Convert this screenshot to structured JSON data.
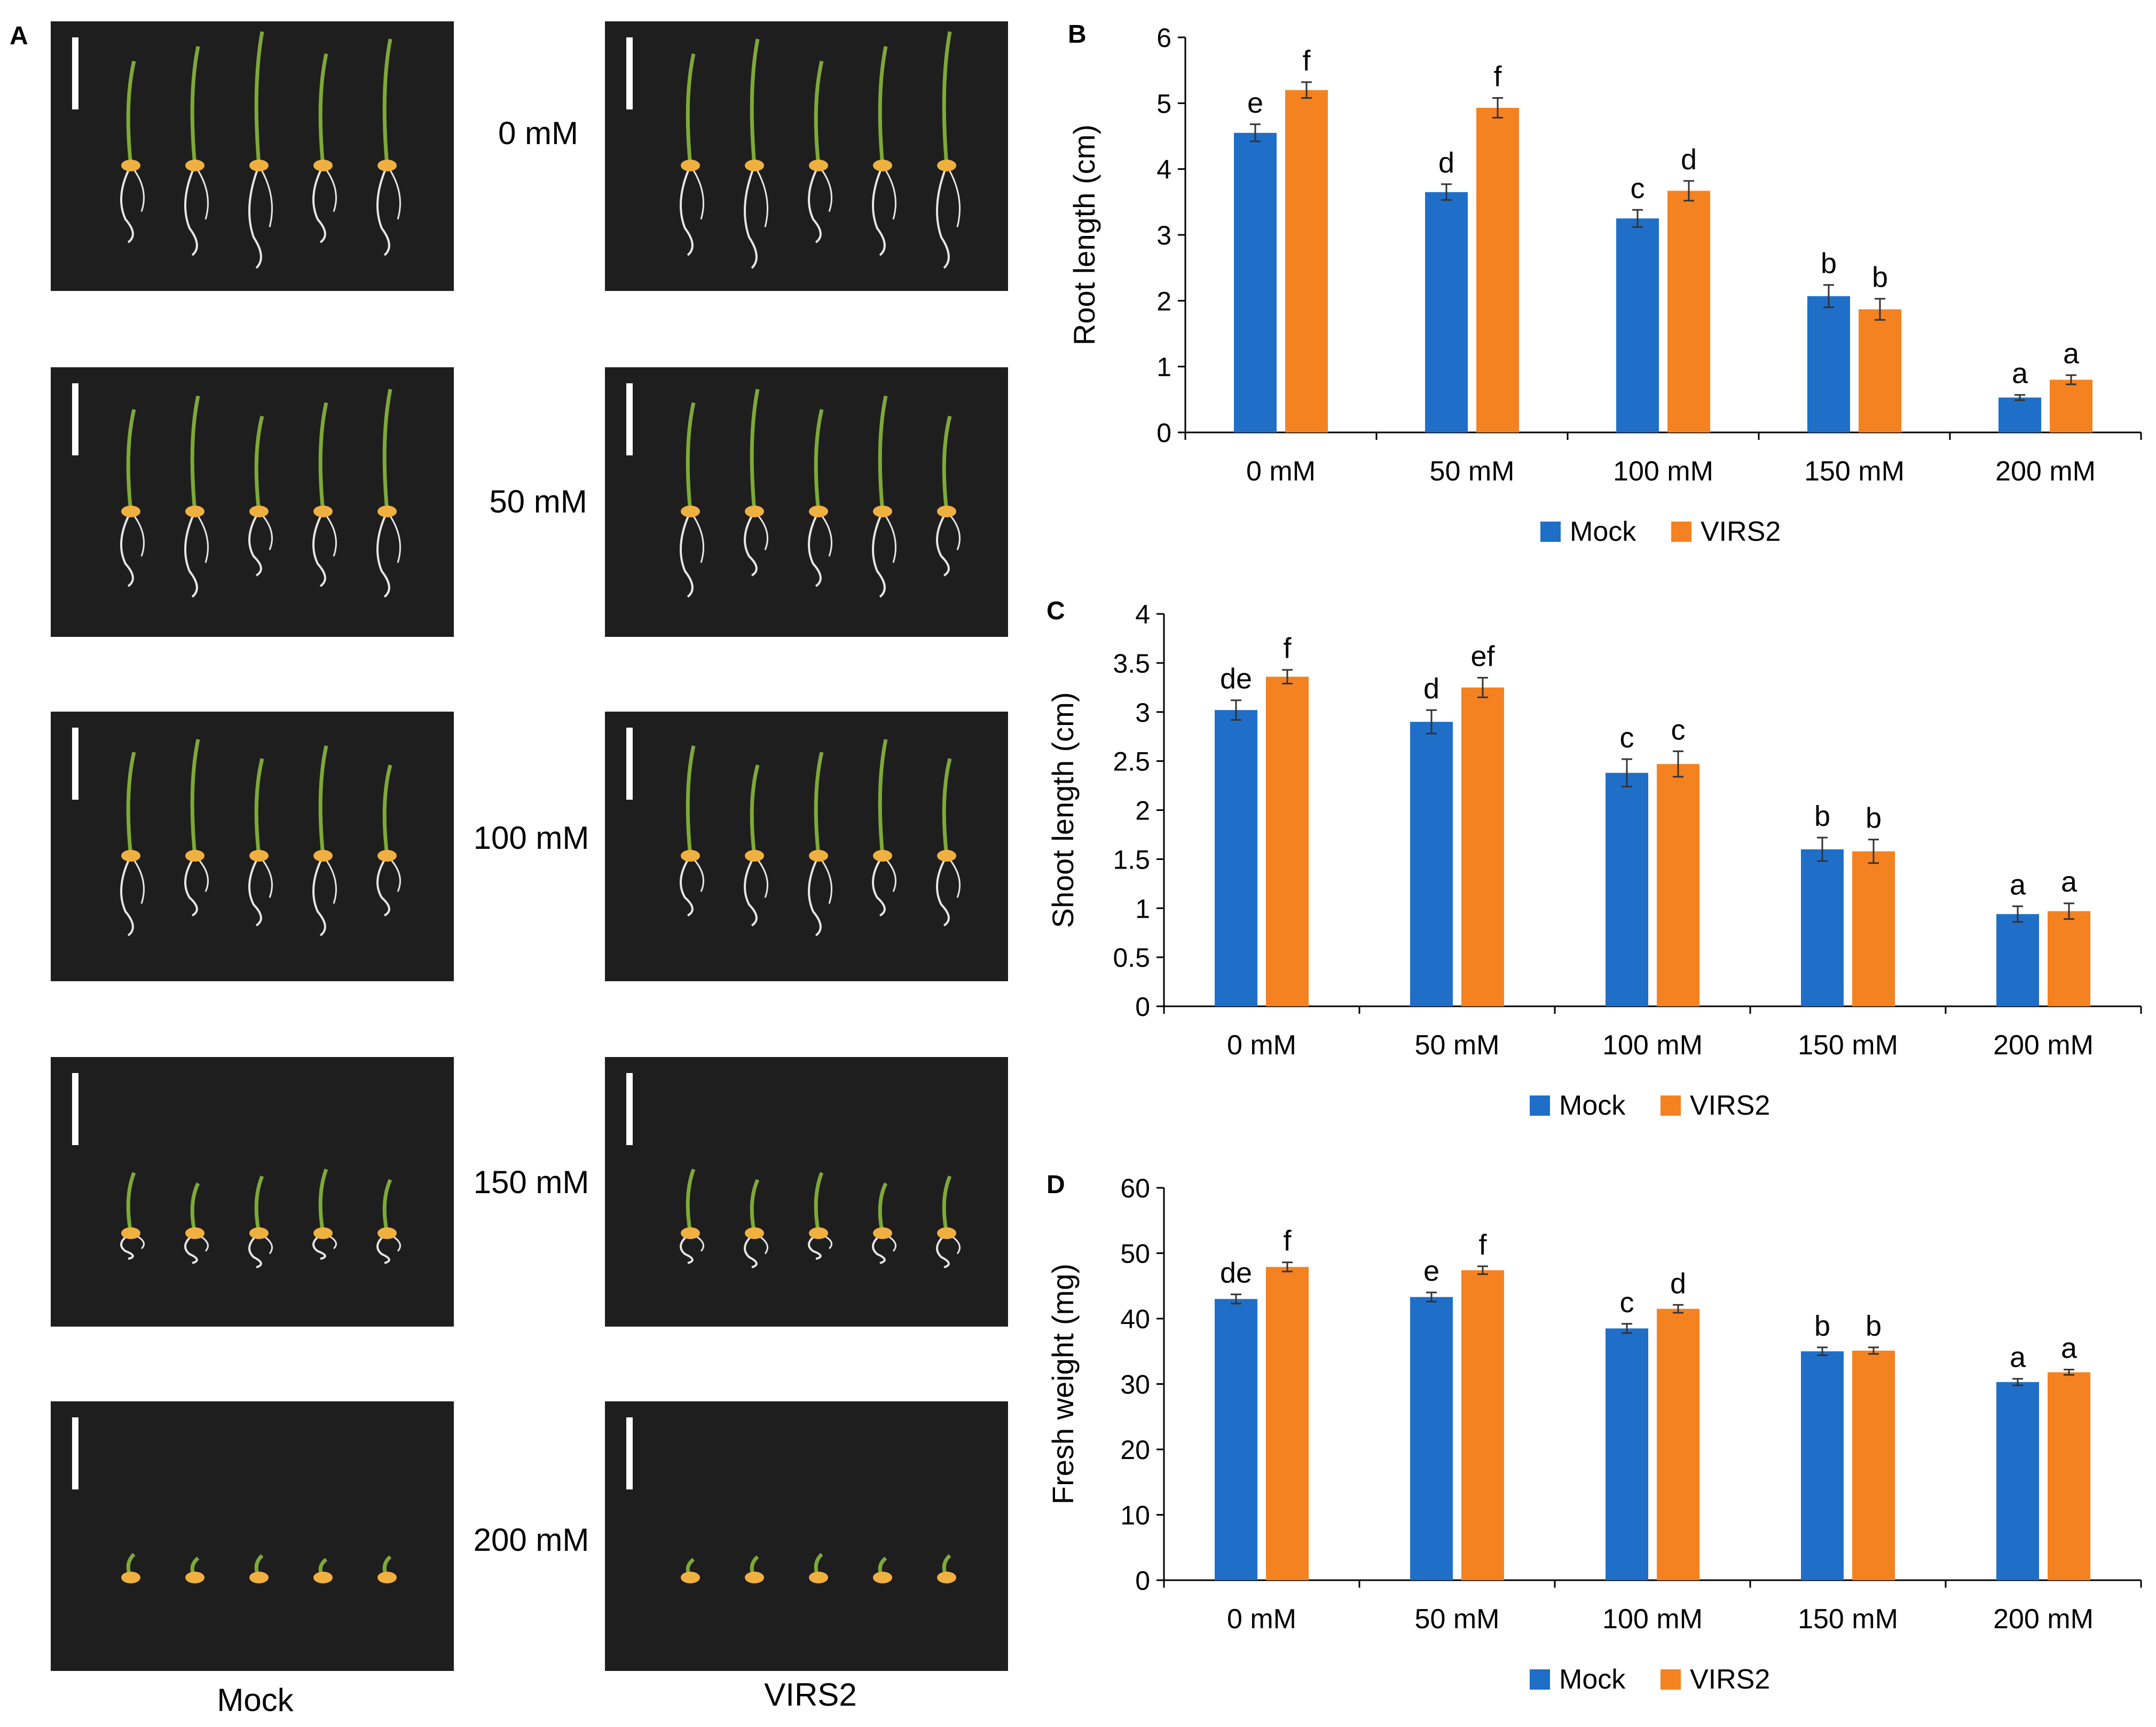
{
  "panel_a": {
    "letter": "A",
    "concentrations": [
      "0 mM",
      "50 mM",
      "100 mM",
      "150 mM",
      "200 mM"
    ],
    "genotypes": [
      "Mock",
      "VIRS2"
    ]
  },
  "legend": {
    "mock": "Mock",
    "virs2": "VIRS2"
  },
  "colors": {
    "mock": "#1f6fc9",
    "virs2": "#f58220",
    "photo_bg": "#1e1e1e",
    "shoot": "#7fa83a",
    "seed": "#f0b040",
    "root": "#e6e6e6"
  },
  "chart_data": [
    {
      "id": "B",
      "type": "bar",
      "letter": "B",
      "ylabel": "Root length (cm)",
      "ylim": [
        0,
        6
      ],
      "yticks": [
        0,
        1,
        2,
        3,
        4,
        5,
        6
      ],
      "categories": [
        "0 mM",
        "50 mM",
        "100 mM",
        "150 mM",
        "200 mM"
      ],
      "series": [
        {
          "name": "Mock",
          "values": [
            4.55,
            3.65,
            3.25,
            2.07,
            0.53
          ],
          "errors": [
            0.13,
            0.12,
            0.13,
            0.17,
            0.04
          ],
          "labels": [
            "e",
            "d",
            "c",
            "b",
            "a"
          ]
        },
        {
          "name": "VIRS2",
          "values": [
            5.2,
            4.93,
            3.67,
            1.87,
            0.8
          ],
          "errors": [
            0.12,
            0.15,
            0.15,
            0.16,
            0.07
          ],
          "labels": [
            "f",
            "f",
            "d",
            "b",
            "a"
          ]
        }
      ]
    },
    {
      "id": "C",
      "type": "bar",
      "letter": "C",
      "ylabel": "Shoot length (cm)",
      "ylim": [
        0,
        4
      ],
      "yticks": [
        0,
        0.5,
        1,
        1.5,
        2,
        2.5,
        3,
        3.5,
        4
      ],
      "categories": [
        "0 mM",
        "50 mM",
        "100 mM",
        "150 mM",
        "200 mM"
      ],
      "series": [
        {
          "name": "Mock",
          "values": [
            3.02,
            2.9,
            2.38,
            1.6,
            0.94
          ],
          "errors": [
            0.1,
            0.12,
            0.14,
            0.12,
            0.08
          ],
          "labels": [
            "de",
            "d",
            "c",
            "b",
            "a"
          ]
        },
        {
          "name": "VIRS2",
          "values": [
            3.36,
            3.25,
            2.47,
            1.58,
            0.97
          ],
          "errors": [
            0.07,
            0.1,
            0.13,
            0.12,
            0.08
          ],
          "labels": [
            "f",
            "ef",
            "c",
            "b",
            "a"
          ]
        }
      ]
    },
    {
      "id": "D",
      "type": "bar",
      "letter": "D",
      "ylabel": "Fresh weight (mg)",
      "ylim": [
        0,
        60
      ],
      "yticks": [
        0,
        10,
        20,
        30,
        40,
        50,
        60
      ],
      "categories": [
        "0 mM",
        "50 mM",
        "100 mM",
        "150 mM",
        "200 mM"
      ],
      "series": [
        {
          "name": "Mock",
          "values": [
            43,
            43.3,
            38.5,
            35,
            30.3
          ],
          "errors": [
            0.7,
            0.7,
            0.7,
            0.6,
            0.5
          ],
          "labels": [
            "de",
            "e",
            "c",
            "b",
            "a"
          ]
        },
        {
          "name": "VIRS2",
          "values": [
            47.9,
            47.4,
            41.5,
            35.1,
            31.8
          ],
          "errors": [
            0.7,
            0.6,
            0.6,
            0.5,
            0.4
          ],
          "labels": [
            "f",
            "f",
            "d",
            "b",
            "a"
          ]
        }
      ]
    }
  ]
}
